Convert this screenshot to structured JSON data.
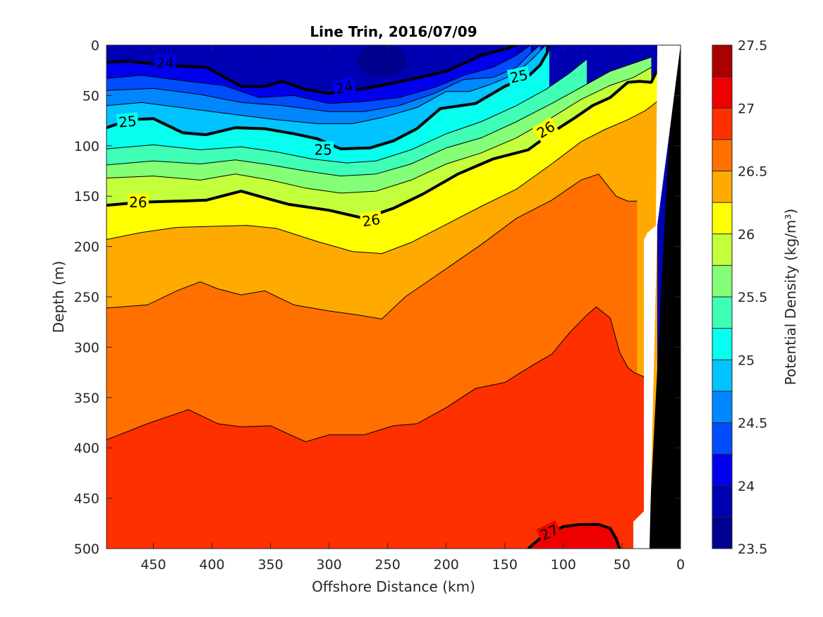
{
  "chart_data": {
    "type": "heatmap",
    "title": "Line Trin, 2016/07/09",
    "xlabel": "Offshore Distance (km)",
    "ylabel": "Depth (m)",
    "xlim": [
      490,
      0
    ],
    "ylim": [
      0,
      500
    ],
    "x_reversed": true,
    "y_reversed": true,
    "xticks": [
      450,
      400,
      350,
      300,
      250,
      200,
      150,
      100,
      50,
      0
    ],
    "xtick_labels": [
      "450",
      "400",
      "350",
      "300",
      "250",
      "200",
      "150",
      "100",
      "50",
      "0"
    ],
    "yticks": [
      0,
      50,
      100,
      150,
      200,
      250,
      300,
      350,
      400,
      450,
      500
    ],
    "ytick_labels": [
      "0",
      "50",
      "100",
      "150",
      "200",
      "250",
      "300",
      "350",
      "400",
      "450",
      "500"
    ],
    "colorbar": {
      "label": "Potential Density (kg/m³)",
      "range": [
        23.5,
        27.5
      ],
      "level_step": 0.25,
      "tick_values": [
        23.5,
        24,
        24.5,
        25,
        25.5,
        26,
        26.5,
        27,
        27.5
      ],
      "tick_labels": [
        "23.5",
        "24",
        "24.5",
        "25",
        "25.5",
        "26",
        "26.5",
        "27",
        "27.5"
      ],
      "colors": [
        "#00008f",
        "#0000b3",
        "#0000ef",
        "#004cff",
        "#0087ff",
        "#00c3ff",
        "#06ffef",
        "#3fffb7",
        "#84ff77",
        "#c4ff3b",
        "#ffff00",
        "#ffaa00",
        "#ff7000",
        "#ff3000",
        "#ef0000",
        "#aa0000"
      ]
    },
    "contours": [
      {
        "level": 24.0,
        "x": [
          490,
          470,
          440,
          405,
          375,
          355,
          340,
          320,
          300,
          275,
          255,
          230,
          200,
          170,
          150,
          140
        ],
        "y": [
          17,
          16,
          20,
          22,
          41,
          41,
          36,
          44,
          48,
          44,
          40,
          34,
          26,
          10,
          4,
          0
        ],
        "bold": true
      },
      {
        "level": 24.25,
        "x": [
          490,
          460,
          420,
          390,
          360,
          330,
          300,
          270,
          240,
          210,
          185,
          160,
          140,
          128
        ],
        "y": [
          33,
          30,
          36,
          40,
          52,
          50,
          58,
          56,
          52,
          42,
          30,
          22,
          10,
          0
        ],
        "bold": false
      },
      {
        "level": 24.5,
        "x": [
          490,
          450,
          410,
          375,
          340,
          300,
          270,
          240,
          210,
          185,
          160,
          140,
          128,
          120
        ],
        "y": [
          45,
          43,
          49,
          57,
          60,
          66,
          66,
          60,
          48,
          34,
          32,
          22,
          8,
          0
        ],
        "bold": false
      },
      {
        "level": 24.75,
        "x": [
          490,
          460,
          420,
          380,
          345,
          310,
          280,
          255,
          225,
          200,
          180,
          160,
          140,
          125,
          115
        ],
        "y": [
          60,
          57,
          63,
          69,
          74,
          78,
          78,
          72,
          62,
          46,
          46,
          38,
          28,
          12,
          0
        ],
        "bold": false
      },
      {
        "level": 25.0,
        "x": [
          490,
          470,
          450,
          425,
          405,
          380,
          355,
          330,
          310,
          290,
          265,
          245,
          225,
          205,
          175,
          150,
          130,
          120,
          114,
          112
        ],
        "y": [
          82,
          74,
          73,
          87,
          89,
          82,
          83,
          88,
          93,
          103,
          102,
          95,
          83,
          63,
          58,
          41,
          31,
          20,
          8,
          0
        ],
        "bold": true
      },
      {
        "level": 25.25,
        "x": [
          490,
          450,
          410,
          375,
          345,
          315,
          285,
          260,
          230,
          200,
          170,
          140,
          115,
          95,
          80
        ],
        "y": [
          103,
          99,
          104,
          101,
          106,
          113,
          117,
          115,
          104,
          88,
          76,
          60,
          44,
          28,
          14
        ],
        "bold": false
      },
      {
        "level": 25.5,
        "x": [
          490,
          450,
          410,
          380,
          350,
          320,
          290,
          260,
          230,
          200,
          170,
          140,
          110,
          85,
          60,
          40,
          25
        ],
        "y": [
          119,
          115,
          118,
          114,
          119,
          125,
          130,
          128,
          118,
          102,
          92,
          76,
          58,
          42,
          26,
          18,
          12
        ],
        "bold": false
      },
      {
        "level": 25.75,
        "x": [
          490,
          450,
          410,
          380,
          350,
          320,
          290,
          260,
          230,
          200,
          170,
          140,
          110,
          85,
          60,
          40,
          25
        ],
        "y": [
          132,
          130,
          134,
          128,
          134,
          142,
          147,
          145,
          134,
          118,
          107,
          92,
          72,
          54,
          40,
          32,
          22
        ],
        "bold": false
      },
      {
        "level": 26.0,
        "x": [
          490,
          460,
          430,
          405,
          385,
          375,
          360,
          335,
          300,
          270,
          245,
          220,
          190,
          160,
          130,
          110,
          90,
          75,
          60,
          45,
          35,
          25,
          20
        ],
        "y": [
          159,
          156,
          155,
          154,
          148,
          145,
          150,
          158,
          164,
          172,
          162,
          148,
          128,
          113,
          104,
          87,
          72,
          60,
          52,
          37,
          36,
          37,
          25
        ],
        "bold": true
      },
      {
        "level": 26.25,
        "x": [
          490,
          460,
          430,
          400,
          370,
          345,
          310,
          280,
          255,
          230,
          200,
          170,
          140,
          110,
          85,
          65,
          45,
          30,
          20
        ],
        "y": [
          193,
          186,
          181,
          180,
          179,
          182,
          195,
          205,
          207,
          196,
          178,
          160,
          143,
          118,
          96,
          84,
          74,
          65,
          56
        ],
        "bold": false
      },
      {
        "level": 26.5,
        "x": [
          490,
          455,
          430,
          410,
          395,
          375,
          355,
          330,
          300,
          275,
          255,
          235,
          200,
          170,
          140,
          110,
          95,
          85,
          70,
          55,
          45,
          37
        ],
        "y": [
          261,
          258,
          244,
          235,
          242,
          248,
          244,
          258,
          264,
          268,
          272,
          250,
          222,
          198,
          172,
          154,
          142,
          134,
          128,
          150,
          155,
          155
        ],
        "bold": false
      },
      {
        "level": 26.75,
        "x": [
          490,
          455,
          420,
          395,
          375,
          350,
          320,
          300,
          270,
          245,
          225,
          200,
          175,
          150,
          125,
          110,
          95,
          80,
          72,
          60,
          52,
          45,
          40,
          30
        ],
        "y": [
          392,
          376,
          362,
          376,
          379,
          378,
          394,
          387,
          387,
          378,
          376,
          360,
          341,
          335,
          317,
          307,
          286,
          268,
          260,
          271,
          305,
          320,
          325,
          330
        ],
        "bold": false
      },
      {
        "level": 27.0,
        "x": [
          130,
          120,
          100,
          85,
          70,
          60,
          55,
          52
        ],
        "y": [
          500,
          490,
          478,
          476,
          476,
          480,
          490,
          500
        ],
        "bold": true
      }
    ],
    "labels": [
      {
        "text": "24",
        "x": 440,
        "y": 18,
        "rotate": 0
      },
      {
        "text": "24",
        "x": 287,
        "y": 42,
        "rotate": -12
      },
      {
        "text": "25",
        "x": 138,
        "y": 31,
        "rotate": -12
      },
      {
        "text": "25",
        "x": 472,
        "y": 76,
        "rotate": -5
      },
      {
        "text": "25",
        "x": 305,
        "y": 104,
        "rotate": 0
      },
      {
        "text": "26",
        "x": 463,
        "y": 156,
        "rotate": 0
      },
      {
        "text": "26",
        "x": 264,
        "y": 174,
        "rotate": -8
      },
      {
        "text": "26",
        "x": 115,
        "y": 84,
        "rotate": -32
      },
      {
        "text": "27",
        "x": 112,
        "y": 484,
        "rotate": -25
      }
    ],
    "bathymetry": {
      "color": "#000000"
    }
  }
}
